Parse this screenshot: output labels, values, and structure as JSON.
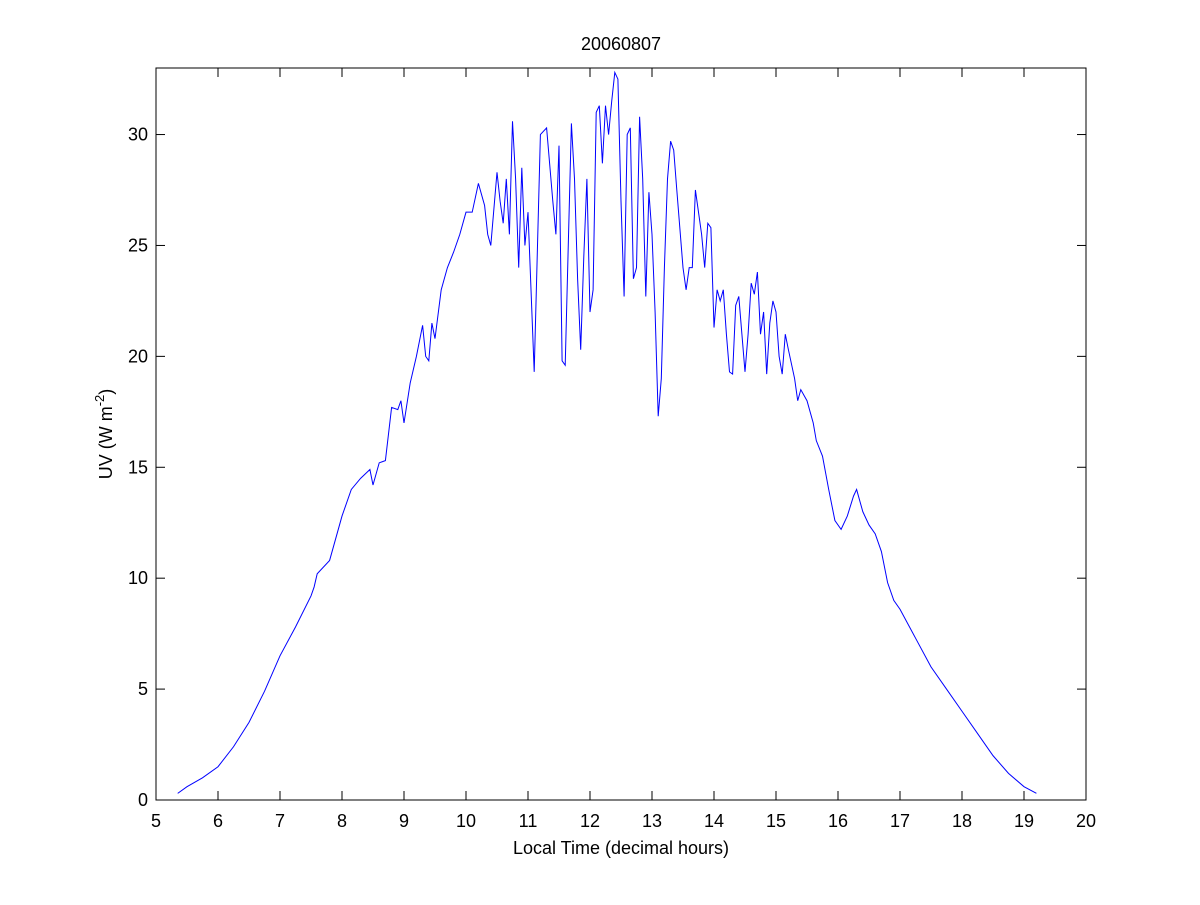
{
  "chart_data": {
    "type": "line",
    "title": "20060807",
    "xlabel": "Local Time (decimal hours)",
    "ylabel": "UV (W m",
    "ylabel_superscript": "-2",
    "ylabel_suffix": ")",
    "xlim": [
      5,
      20
    ],
    "xticks": [
      5,
      6,
      7,
      8,
      9,
      10,
      11,
      12,
      13,
      14,
      15,
      16,
      17,
      18,
      19,
      20
    ],
    "ylim": [
      0,
      33
    ],
    "yticks": [
      0,
      5,
      10,
      15,
      20,
      25,
      30
    ],
    "series": [
      {
        "color": "#0000ff",
        "x": [
          5.35,
          5.5,
          5.75,
          6.0,
          6.25,
          6.5,
          6.75,
          7.0,
          7.25,
          7.5,
          7.55,
          7.6,
          7.8,
          8.0,
          8.15,
          8.3,
          8.45,
          8.5,
          8.6,
          8.7,
          8.8,
          8.9,
          8.95,
          9.0,
          9.1,
          9.2,
          9.3,
          9.35,
          9.4,
          9.45,
          9.5,
          9.6,
          9.7,
          9.8,
          9.9,
          10.0,
          10.1,
          10.2,
          10.3,
          10.35,
          10.4,
          10.5,
          10.55,
          10.6,
          10.65,
          10.7,
          10.75,
          10.8,
          10.85,
          10.9,
          10.95,
          11.0,
          11.1,
          11.2,
          11.3,
          11.4,
          11.45,
          11.5,
          11.55,
          11.6,
          11.7,
          11.75,
          11.8,
          11.85,
          11.9,
          11.95,
          12.0,
          12.05,
          12.1,
          12.15,
          12.2,
          12.25,
          12.3,
          12.35,
          12.4,
          12.45,
          12.5,
          12.55,
          12.6,
          12.65,
          12.7,
          12.75,
          12.8,
          12.85,
          12.9,
          12.95,
          13.0,
          13.05,
          13.1,
          13.15,
          13.2,
          13.25,
          13.3,
          13.35,
          13.4,
          13.5,
          13.55,
          13.6,
          13.65,
          13.7,
          13.8,
          13.85,
          13.9,
          13.95,
          14.0,
          14.05,
          14.1,
          14.15,
          14.2,
          14.25,
          14.3,
          14.35,
          14.4,
          14.45,
          14.5,
          14.55,
          14.6,
          14.65,
          14.7,
          14.75,
          14.8,
          14.85,
          14.9,
          14.95,
          15.0,
          15.05,
          15.1,
          15.15,
          15.2,
          15.3,
          15.35,
          15.4,
          15.5,
          15.6,
          15.65,
          15.75,
          15.85,
          15.95,
          16.05,
          16.15,
          16.25,
          16.3,
          16.4,
          16.5,
          16.6,
          16.7,
          16.8,
          16.9,
          17.0,
          17.25,
          17.5,
          17.75,
          18.0,
          18.25,
          18.5,
          18.75,
          19.0,
          19.2
        ],
        "values": [
          0.3,
          0.6,
          1.0,
          1.5,
          2.4,
          3.5,
          4.9,
          6.5,
          7.8,
          9.2,
          9.6,
          10.2,
          10.8,
          12.8,
          14.0,
          14.5,
          14.9,
          14.2,
          15.2,
          15.3,
          17.7,
          17.6,
          18.0,
          17.0,
          18.8,
          20.0,
          21.4,
          20.0,
          19.8,
          21.5,
          20.8,
          23.0,
          24.0,
          24.7,
          25.5,
          26.5,
          26.5,
          27.8,
          26.8,
          25.5,
          25.0,
          28.3,
          27.0,
          26.0,
          28.0,
          25.5,
          30.6,
          28.0,
          24.0,
          28.5,
          25.0,
          26.5,
          19.3,
          30.0,
          30.3,
          27.0,
          25.5,
          29.5,
          19.8,
          19.6,
          30.5,
          28.0,
          23.5,
          20.3,
          24.5,
          28.0,
          22.0,
          23.0,
          31.0,
          31.3,
          28.7,
          31.3,
          30.0,
          31.5,
          32.8,
          32.5,
          27.0,
          22.7,
          30.0,
          30.3,
          23.5,
          24.0,
          30.8,
          28.0,
          22.7,
          27.4,
          25.5,
          22.0,
          17.3,
          19.0,
          24.0,
          28.0,
          29.7,
          29.3,
          27.5,
          24.0,
          23.0,
          24.0,
          24.0,
          27.5,
          25.5,
          24.0,
          26.0,
          25.8,
          21.3,
          23.0,
          22.5,
          23.0,
          21.0,
          19.3,
          19.2,
          22.3,
          22.7,
          21.0,
          19.3,
          21.0,
          23.3,
          22.8,
          23.8,
          21.0,
          22.0,
          19.2,
          21.5,
          22.5,
          22.0,
          20.0,
          19.2,
          21.0,
          20.3,
          19.0,
          18.0,
          18.5,
          18.0,
          17.0,
          16.2,
          15.5,
          14.0,
          12.6,
          12.2,
          12.8,
          13.7,
          14.0,
          13.0,
          12.4,
          12.0,
          11.2,
          9.8,
          9.0,
          8.6,
          7.3,
          6.0,
          5.0,
          4.0,
          3.0,
          2.0,
          1.2,
          0.6,
          0.3
        ]
      }
    ]
  }
}
